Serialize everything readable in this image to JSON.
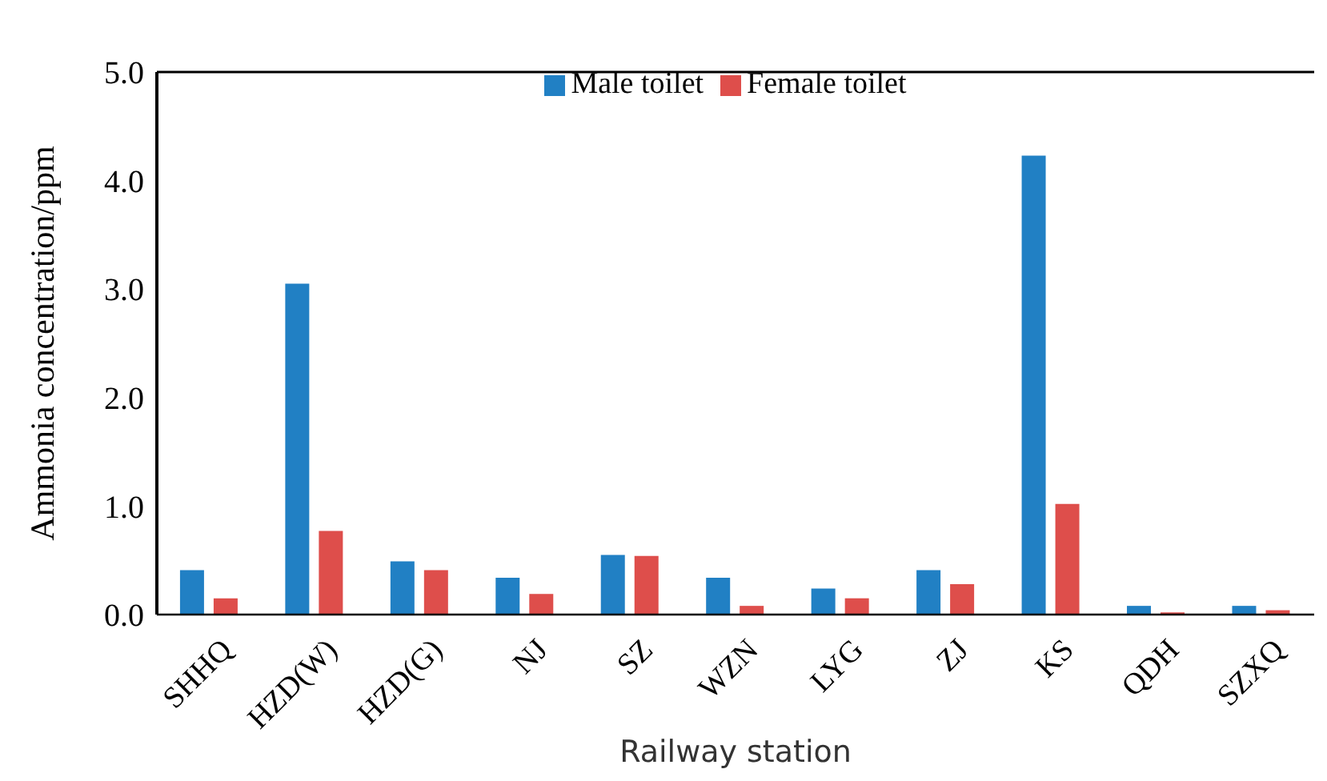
{
  "chart_data": {
    "type": "bar",
    "xlabel": "Railway station",
    "ylabel": "Ammonia concentration/ppm",
    "categories": [
      "SHHQ",
      "HZD(W)",
      "HZD(G)",
      "NJ",
      "SZ",
      "WZN",
      "LYG",
      "ZJ",
      "KS",
      "QDH",
      "SZXQ"
    ],
    "series": [
      {
        "name": "Male toilet",
        "color": "#2180c4",
        "values": [
          0.41,
          3.05,
          0.49,
          0.34,
          0.55,
          0.34,
          0.24,
          0.41,
          4.23,
          0.08,
          0.08
        ]
      },
      {
        "name": "Female toilet",
        "color": "#de4e4b",
        "values": [
          0.15,
          0.77,
          0.41,
          0.19,
          0.54,
          0.08,
          0.15,
          0.28,
          1.02,
          0.02,
          0.04
        ]
      }
    ],
    "ylim": [
      0,
      5
    ],
    "yticks": [
      {
        "value": 0,
        "label": "0.0"
      },
      {
        "value": 1,
        "label": "1.0"
      },
      {
        "value": 2,
        "label": "2.0"
      },
      {
        "value": 3,
        "label": "3.0"
      },
      {
        "value": 4,
        "label": "4.0"
      },
      {
        "value": 5,
        "label": "5.0"
      }
    ],
    "grid": false,
    "legend": "top"
  }
}
